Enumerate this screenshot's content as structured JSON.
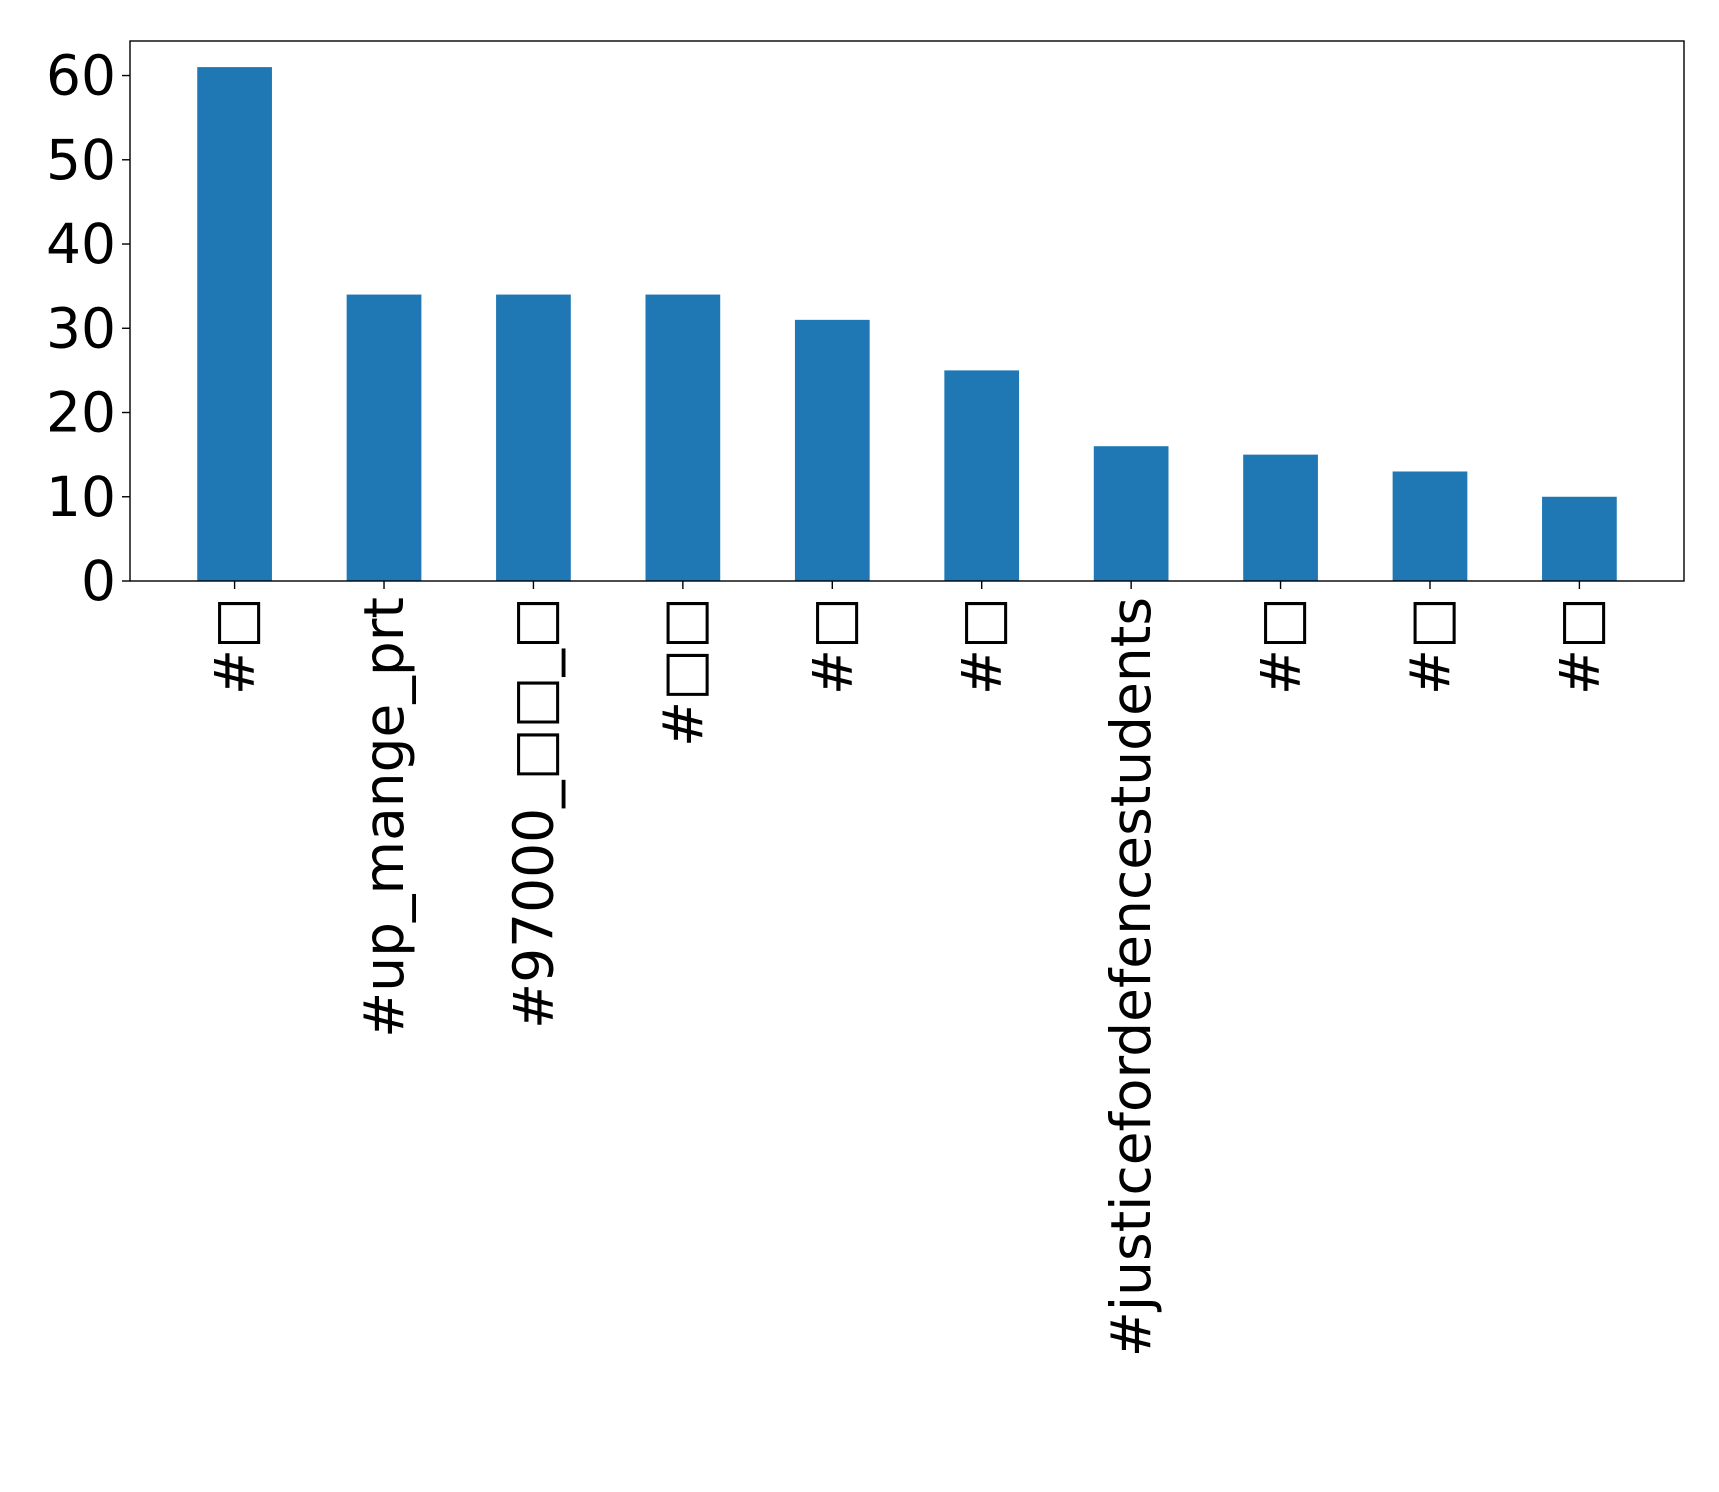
{
  "chart_data": {
    "type": "bar",
    "title": "",
    "xlabel": "",
    "ylabel": "",
    "categories": [
      "#□",
      "#up_mange_prt",
      "#97000_□□_□",
      "#□□",
      "#□",
      "#□",
      "#justicefordefencestudents",
      "#□",
      "#□",
      "#□"
    ],
    "values": [
      61,
      34,
      34,
      34,
      31,
      25,
      16,
      15,
      13,
      10
    ],
    "ylim": [
      0,
      64.1
    ],
    "yticks": [
      "0",
      "10",
      "20",
      "30",
      "40",
      "50",
      "60"
    ],
    "grid": false,
    "legend": "none",
    "colors": {
      "bar": "#1f77b4",
      "axis": "#000000",
      "background": "#ffffff"
    }
  }
}
